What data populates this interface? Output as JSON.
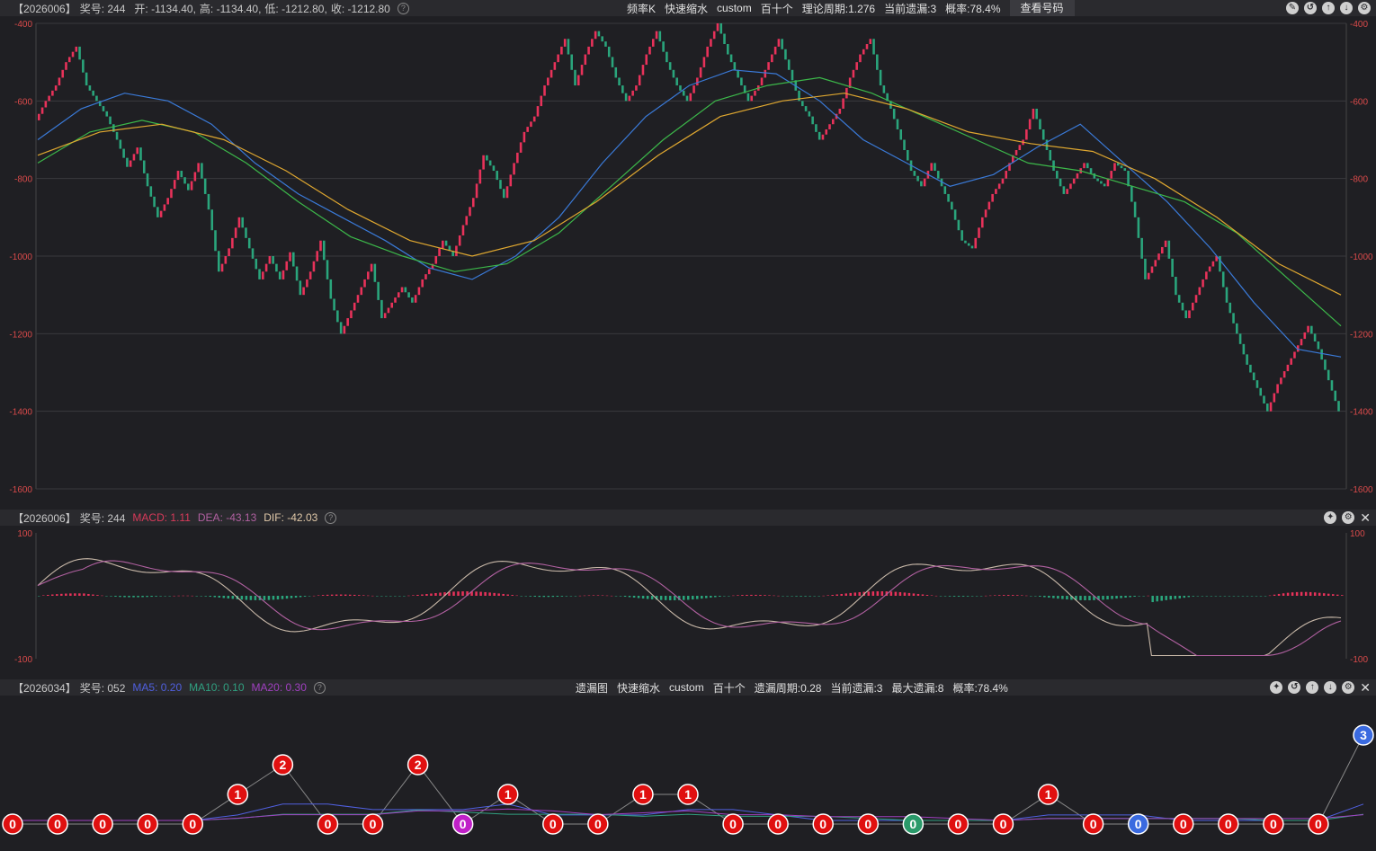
{
  "kline": {
    "header": {
      "id": "【2026006】",
      "issue": "奖号: 244",
      "open": "开: -1134.40,",
      "high": "高: -1134.40,",
      "low": "低: -1212.80,",
      "close": "收: -1212.80"
    },
    "center": [
      "频率K",
      "快速缩水",
      "custom",
      "百十个",
      "理论周期:1.276",
      "当前遗漏:3",
      "概率:78.4%"
    ],
    "button": "查看号码",
    "icons": [
      "edit-icon",
      "undo-icon",
      "up-icon",
      "down-icon",
      "settings-icon"
    ]
  },
  "macd": {
    "header": {
      "id": "【2026006】",
      "issue": "奖号: 244",
      "macd": "MACD: 1.11",
      "dea": "DEA: -43.13",
      "dif": "DIF: -42.03"
    },
    "icons": [
      "pin-icon",
      "settings-icon",
      "close-icon"
    ]
  },
  "omit": {
    "header": {
      "id": "【2026034】",
      "issue": "奖号: 052",
      "ma5": "MA5: 0.20",
      "ma10": "MA10: 0.10",
      "ma20": "MA20: 0.30"
    },
    "center": [
      "遗漏图",
      "快速缩水",
      "custom",
      "百十个",
      "遗漏周期:0.28",
      "当前遗漏:3",
      "最大遗漏:8",
      "概率:78.4%"
    ],
    "icons": [
      "pin-icon",
      "undo-icon",
      "up-icon",
      "down-icon",
      "settings-icon",
      "close-icon"
    ]
  },
  "colors": {
    "up": "#e8325a",
    "down": "#2aa57c",
    "ma_blue": "#3a7ad8",
    "ma_green": "#3cb84a",
    "ma_orange": "#e0a830",
    "macd_dif": "#c8b8a8",
    "macd_dea": "#b060a0",
    "omit_ma5": "#5060e0",
    "omit_ma10": "#30a080",
    "omit_ma20": "#a040c0"
  },
  "chart_data": [
    {
      "type": "candlestick",
      "ylim": [
        -1600,
        -400
      ],
      "yticks": [
        -400,
        -600,
        -800,
        -1000,
        -1200,
        -1400,
        -1600
      ],
      "close_path": [
        -650,
        -600,
        -560,
        -500,
        -460,
        -560,
        -600,
        -640,
        -700,
        -770,
        -720,
        -820,
        -900,
        -850,
        -780,
        -830,
        -760,
        -880,
        -1040,
        -980,
        -900,
        -980,
        -1060,
        -1000,
        -1060,
        -990,
        -1100,
        -1040,
        -960,
        -1110,
        -1200,
        -1140,
        -1080,
        -1020,
        -1160,
        -1120,
        -1080,
        -1120,
        -1060,
        -1020,
        -960,
        -1000,
        -920,
        -850,
        -740,
        -780,
        -850,
        -760,
        -680,
        -640,
        -560,
        -500,
        -440,
        -560,
        -480,
        -420,
        -460,
        -540,
        -600,
        -560,
        -480,
        -420,
        -500,
        -560,
        -600,
        -540,
        -460,
        -400,
        -480,
        -540,
        -600,
        -560,
        -500,
        -440,
        -520,
        -600,
        -640,
        -700,
        -660,
        -620,
        -540,
        -480,
        -440,
        -560,
        -620,
        -700,
        -780,
        -820,
        -760,
        -820,
        -880,
        -960,
        -980,
        -900,
        -840,
        -800,
        -740,
        -700,
        -620,
        -700,
        -780,
        -840,
        -800,
        -760,
        -800,
        -820,
        -760,
        -780,
        -900,
        -1060,
        -1010,
        -960,
        -1100,
        -1160,
        -1100,
        -1040,
        -1000,
        -1120,
        -1200,
        -1280,
        -1340,
        -1400,
        -1330,
        -1280,
        -1230,
        -1180,
        -1240,
        -1320,
        -1400
      ],
      "ma": [
        {
          "name": "",
          "values": [
            -700,
            -620,
            -580,
            -600,
            -660,
            -760,
            -840,
            -900,
            -960,
            -1030,
            -1060,
            -1000,
            -900,
            -760,
            -640,
            -560,
            -520,
            -530,
            -600,
            -700,
            -760,
            -820,
            -790,
            -720,
            -660,
            -760,
            -860,
            -980,
            -1120,
            -1240,
            -1260
          ]
        },
        {
          "name": "",
          "values": [
            -760,
            -680,
            -650,
            -680,
            -760,
            -860,
            -950,
            -1000,
            -1040,
            -1020,
            -940,
            -820,
            -700,
            -600,
            -560,
            -540,
            -580,
            -640,
            -700,
            -760,
            -780,
            -820,
            -860,
            -940,
            -1060,
            -1180
          ]
        },
        {
          "name": "",
          "values": [
            -740,
            -680,
            -660,
            -700,
            -780,
            -880,
            -960,
            -1000,
            -960,
            -860,
            -740,
            -640,
            -600,
            -580,
            -620,
            -680,
            -710,
            -730,
            -800,
            -900,
            -1020,
            -1100
          ]
        }
      ]
    },
    {
      "type": "bar+line",
      "ylim": [
        -100,
        100
      ],
      "yticks": [
        100,
        -100
      ]
    },
    {
      "type": "line+markers",
      "series": [
        {
          "name": "",
          "values": [
            0,
            0,
            0,
            0,
            0,
            1,
            2,
            0,
            0,
            2,
            0,
            1,
            0,
            0,
            1,
            1,
            0,
            0,
            0,
            0,
            0,
            0,
            0,
            1,
            0,
            0,
            0,
            0,
            0,
            0,
            3
          ]
        }
      ]
    }
  ]
}
